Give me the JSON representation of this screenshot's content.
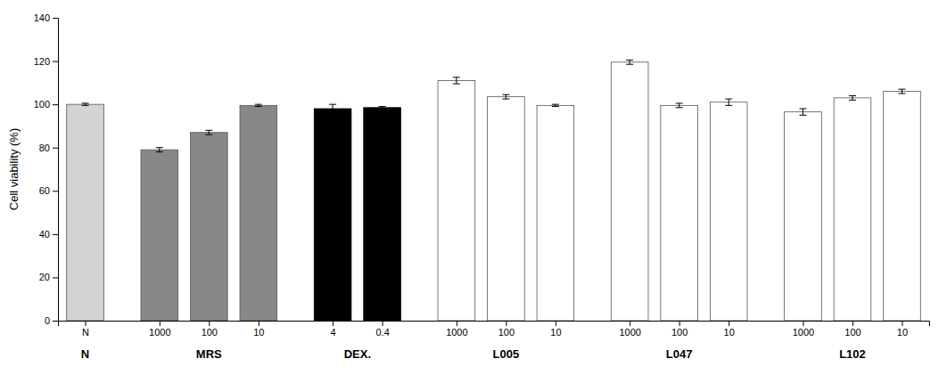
{
  "chart_data": {
    "type": "bar",
    "y_label": "Cell viability (%)",
    "categories": [
      "N",
      "1000",
      "100",
      "10",
      "4",
      "0.4",
      "1000",
      "100",
      "10",
      "1000",
      "100",
      "10",
      "1000",
      "100",
      "10"
    ],
    "groups": [
      "N",
      "MRS",
      "MRS",
      "MRS",
      "DEX.",
      "DEX.",
      "L005",
      "L005",
      "L005",
      "L047",
      "L047",
      "L047",
      "L102",
      "L102",
      "L102"
    ],
    "values": [
      100.0,
      79.0,
      87.0,
      99.5,
      98.0,
      98.5,
      111.0,
      103.5,
      99.5,
      119.5,
      99.5,
      101.0,
      96.5,
      103.0,
      106.0
    ],
    "errors": [
      0.5,
      1.0,
      1.0,
      0.5,
      2.0,
      0.5,
      1.5,
      1.0,
      0.5,
      1.0,
      1.0,
      1.5,
      1.5,
      1.0,
      1.0
    ],
    "colors": [
      "#d3d3d3",
      "#888888",
      "#888888",
      "#888888",
      "#000000",
      "#000000",
      "#ffffff",
      "#ffffff",
      "#ffffff",
      "#ffffff",
      "#ffffff",
      "#ffffff",
      "#ffffff",
      "#ffffff",
      "#ffffff"
    ],
    "ylim": [
      0,
      140
    ],
    "yticks": [
      0,
      20,
      40,
      60,
      80,
      100,
      120,
      140
    ],
    "grid": false
  }
}
